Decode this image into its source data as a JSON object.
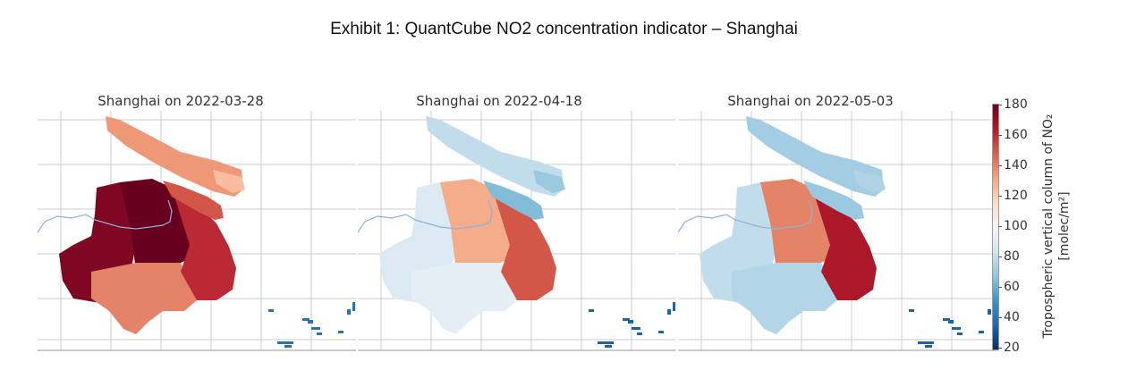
{
  "exhibit_title": "Exhibit 1: QuantCube NO2 concentration indicator – Shanghai",
  "colors": {
    "low": "#053061",
    "mid_low": "#4393c3",
    "neutral": "#f7f7f7",
    "mid_high": "#d6604d",
    "high": "#67001f",
    "river": "#8fb1d6",
    "grid": "#cccccc"
  },
  "chart_data": [
    {
      "type": "heatmap",
      "title": "Shanghai on 2022-03-28",
      "colorscale": "RdBu_r",
      "vmin": 20,
      "vmax": 180,
      "region_values": {
        "north_island": 135,
        "middle_island": 150,
        "east_strip": 125,
        "mainland_west": 175,
        "mainland_center": 180,
        "mainland_east": 160,
        "mainland_south": 140,
        "offshore": 40
      }
    },
    {
      "type": "heatmap",
      "title": "Shanghai on 2022-04-18",
      "colorscale": "RdBu_r",
      "vmin": 20,
      "vmax": 180,
      "region_values": {
        "north_island": 80,
        "middle_island": 65,
        "east_strip": 70,
        "mainland_west": 88,
        "mainland_center": 130,
        "mainland_east": 150,
        "mainland_south": 92,
        "offshore": 35
      }
    },
    {
      "type": "heatmap",
      "title": "Shanghai on 2022-05-03",
      "colorscale": "RdBu_r",
      "vmin": 20,
      "vmax": 180,
      "region_values": {
        "north_island": 72,
        "middle_island": 70,
        "east_strip": 75,
        "mainland_west": 80,
        "mainland_center": 140,
        "mainland_east": 165,
        "mainland_south": 76,
        "offshore": 35
      }
    }
  ],
  "colorbar": {
    "label_line1": "Tropospheric vertical column of NO₂",
    "label_line2": "[molec/m²]",
    "ticks": [
      "180",
      "160",
      "140",
      "120",
      "100",
      "80",
      "60",
      "40",
      "20"
    ]
  }
}
